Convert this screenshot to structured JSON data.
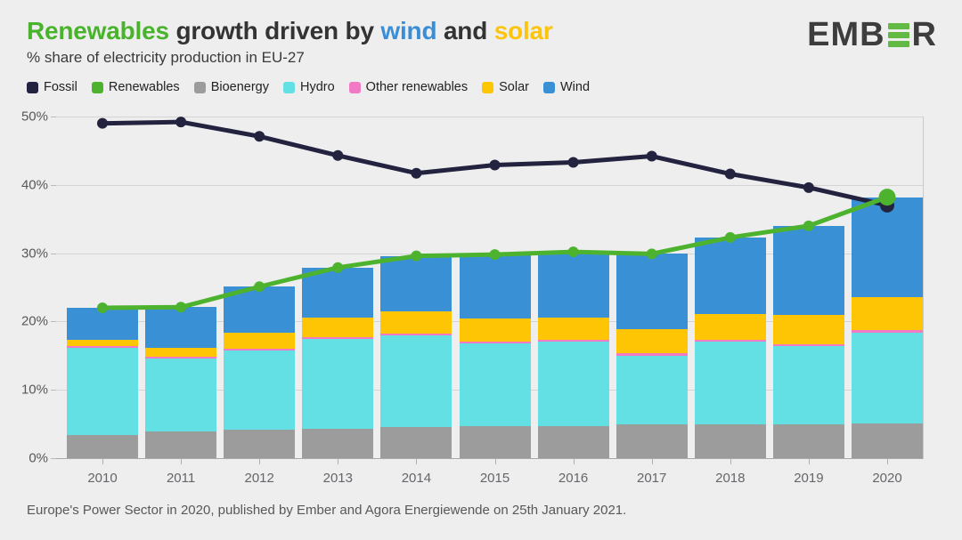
{
  "header": {
    "title_parts": [
      {
        "text": "Renewables",
        "color": "#49b32c"
      },
      {
        "text": " growth driven by ",
        "color": "#333333"
      },
      {
        "text": "wind",
        "color": "#3a8ed8"
      },
      {
        "text": " and ",
        "color": "#333333"
      },
      {
        "text": "solar",
        "color": "#fcc40a"
      }
    ],
    "subtitle": "% share of electricity production in EU-27"
  },
  "logo": {
    "name": "EMBER",
    "pre": "EMB",
    "post": "R",
    "bars_color": "#62b944",
    "text_color": "#3d3d3d"
  },
  "legend": {
    "items": [
      {
        "label": "Fossil",
        "color": "#23233f"
      },
      {
        "label": "Renewables",
        "color": "#4db32e"
      },
      {
        "label": "Bioenergy",
        "color": "#9c9c9c"
      },
      {
        "label": "Hydro",
        "color": "#63e0e3"
      },
      {
        "label": "Other renewables",
        "color": "#f279c4"
      },
      {
        "label": "Solar",
        "color": "#fdc504"
      },
      {
        "label": "Wind",
        "color": "#3a90d5"
      }
    ]
  },
  "chart_data": {
    "type": "bar",
    "subtype": "stacked bars with overlaid lines",
    "categories": [
      "2010",
      "2011",
      "2012",
      "2013",
      "2014",
      "2015",
      "2016",
      "2017",
      "2018",
      "2019",
      "2020"
    ],
    "ylim": [
      0,
      50
    ],
    "yticks": [
      0,
      10,
      20,
      30,
      40,
      50
    ],
    "ytick_labels": [
      "0%",
      "10%",
      "20%",
      "30%",
      "40%",
      "50%"
    ],
    "grid": true,
    "legend_position": "top",
    "stacked_series": [
      {
        "name": "Bioenergy",
        "color": "#9c9c9c",
        "values": [
          3.4,
          3.9,
          4.2,
          4.3,
          4.6,
          4.7,
          4.7,
          4.9,
          4.9,
          4.9,
          5.1
        ]
      },
      {
        "name": "Hydro",
        "color": "#63e0e3",
        "values": [
          12.7,
          10.7,
          11.6,
          13.2,
          13.4,
          12.1,
          12.3,
          10.1,
          12.1,
          11.5,
          13.3
        ]
      },
      {
        "name": "Other renewables",
        "color": "#f279c4",
        "values": [
          0.3,
          0.2,
          0.2,
          0.2,
          0.2,
          0.2,
          0.3,
          0.3,
          0.3,
          0.3,
          0.3
        ]
      },
      {
        "name": "Solar",
        "color": "#fdc504",
        "values": [
          0.9,
          1.4,
          2.4,
          2.9,
          3.3,
          3.4,
          3.3,
          3.6,
          3.8,
          4.3,
          4.9
        ]
      },
      {
        "name": "Wind",
        "color": "#3a90d5",
        "values": [
          4.7,
          5.9,
          6.7,
          7.3,
          8.1,
          9.4,
          9.6,
          11.0,
          11.2,
          13.0,
          14.6
        ]
      }
    ],
    "line_series": [
      {
        "name": "Fossil",
        "color": "#23233f",
        "values": [
          49.0,
          49.2,
          47.1,
          44.3,
          41.7,
          42.9,
          43.3,
          44.2,
          41.6,
          39.6,
          37.0
        ]
      },
      {
        "name": "Renewables",
        "color": "#4db32e",
        "values": [
          22.0,
          22.1,
          25.1,
          27.9,
          29.6,
          29.8,
          30.2,
          29.9,
          32.3,
          34.0,
          38.2
        ]
      }
    ]
  },
  "footer": {
    "source": "Europe's Power Sector in 2020, published by Ember and Agora Energiewende on 25th January 2021."
  }
}
